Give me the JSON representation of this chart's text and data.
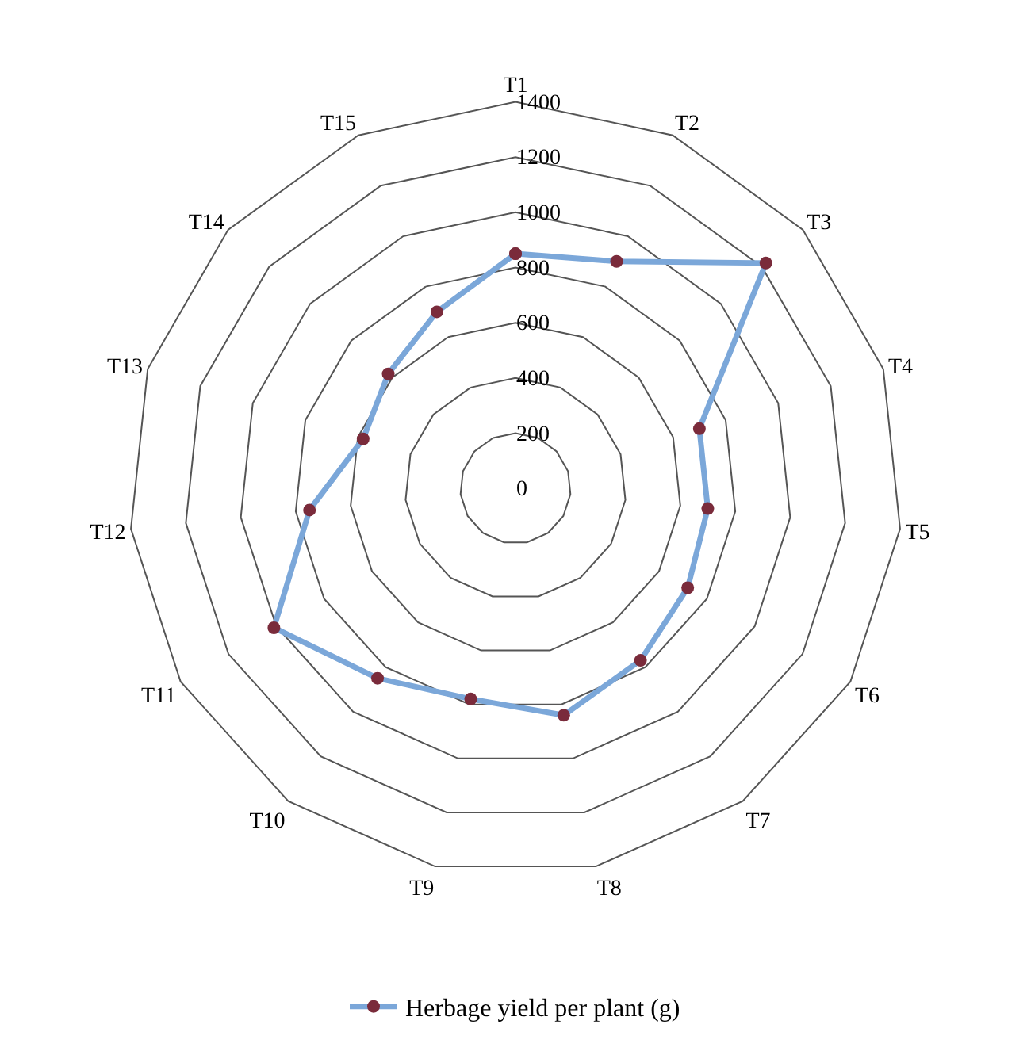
{
  "chart_data": {
    "type": "radar",
    "categories": [
      "T1",
      "T2",
      "T3",
      "T4",
      "T5",
      "T6",
      "T7",
      "T8",
      "T9",
      "T10",
      "T11",
      "T12",
      "T13",
      "T14",
      "T15"
    ],
    "series": [
      {
        "name": "Herbage yield per plant (g)",
        "color": "#7ba7d9",
        "values": [
          850,
          900,
          1220,
          700,
          700,
          720,
          770,
          840,
          780,
          850,
          1010,
          750,
          580,
          620,
          700
        ]
      }
    ],
    "ylim": [
      0,
      1400
    ],
    "yticks": [
      0,
      200,
      400,
      600,
      800,
      1000,
      1200,
      1400
    ],
    "marker": "circle",
    "legend": "bottom",
    "grid": true
  }
}
